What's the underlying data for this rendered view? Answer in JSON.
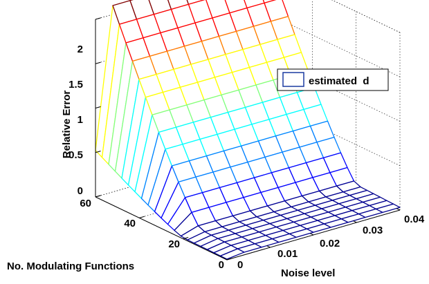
{
  "chart_data": {
    "type": "surface",
    "title": "",
    "xlabel": "Noise level",
    "ylabel": "No. Modulating Functions",
    "zlabel": "Relative Error",
    "x_ticks": [
      "0",
      "0.01",
      "0.02",
      "0.03",
      "0.04"
    ],
    "y_ticks": [
      "0",
      "20",
      "40",
      "60"
    ],
    "z_ticks": [
      "0",
      "0.5",
      "1",
      "1.5",
      "2"
    ],
    "xlim": [
      0,
      0.04
    ],
    "ylim": [
      0,
      60
    ],
    "zlim": [
      0,
      2
    ],
    "grid": true,
    "legend": {
      "position": "top-right",
      "entries": [
        "estimated  d"
      ]
    },
    "series": [
      {
        "name": "estimated  d",
        "noise_levels": [
          0,
          0.004,
          0.008,
          0.012,
          0.016,
          0.02,
          0.024,
          0.028,
          0.032,
          0.036,
          0.04
        ],
        "modulating_functions": [
          0,
          3,
          6,
          9,
          12,
          15,
          18,
          21,
          24,
          27,
          30,
          33,
          36,
          39,
          42,
          45,
          48,
          51,
          54,
          57,
          60
        ],
        "plateau_error_at_60": 2.1,
        "plateau_error_at_54": 1.8,
        "plateau_error_at_48": 1.5,
        "plateau_error_at_42": 1.2,
        "plateau_error_at_36": 0.9,
        "plateau_error_at_30": 0.6,
        "error_below_20": 0.05
      }
    ],
    "colormap": [
      "#00008f",
      "#0000ff",
      "#0080ff",
      "#00ffff",
      "#80ff80",
      "#ffff00",
      "#ff8000",
      "#ff0000",
      "#800000"
    ]
  }
}
